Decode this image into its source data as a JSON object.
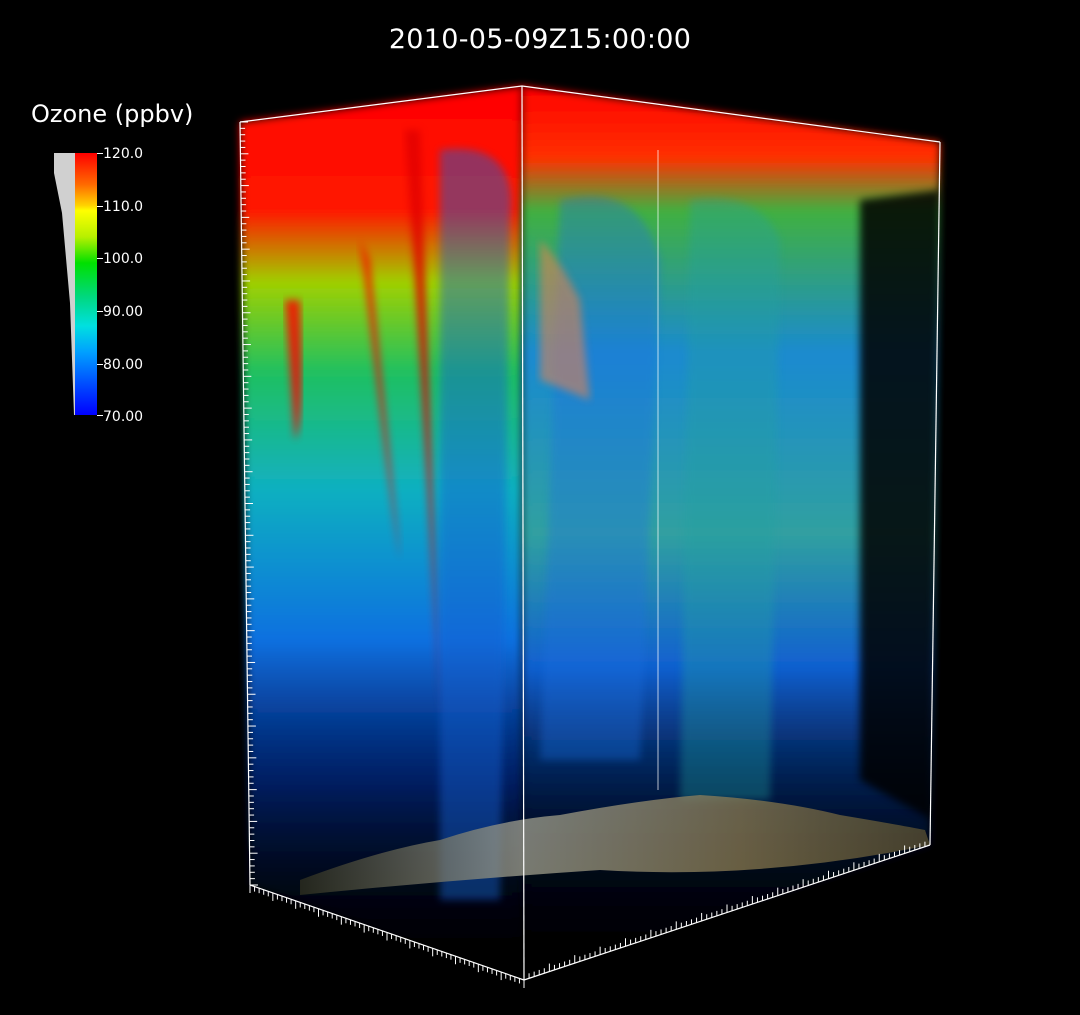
{
  "title": "2010-05-09Z15:00:00",
  "legend": {
    "title": "Ozone (ppbv)",
    "ticks": [
      "120.0",
      "110.0",
      "100.0",
      "90.00",
      "80.00",
      "70.00"
    ],
    "range": [
      70,
      120
    ]
  },
  "colors": {
    "background": "#000000",
    "high": "#ff0000",
    "mid": "#00e000",
    "low": "#0000ff"
  }
}
